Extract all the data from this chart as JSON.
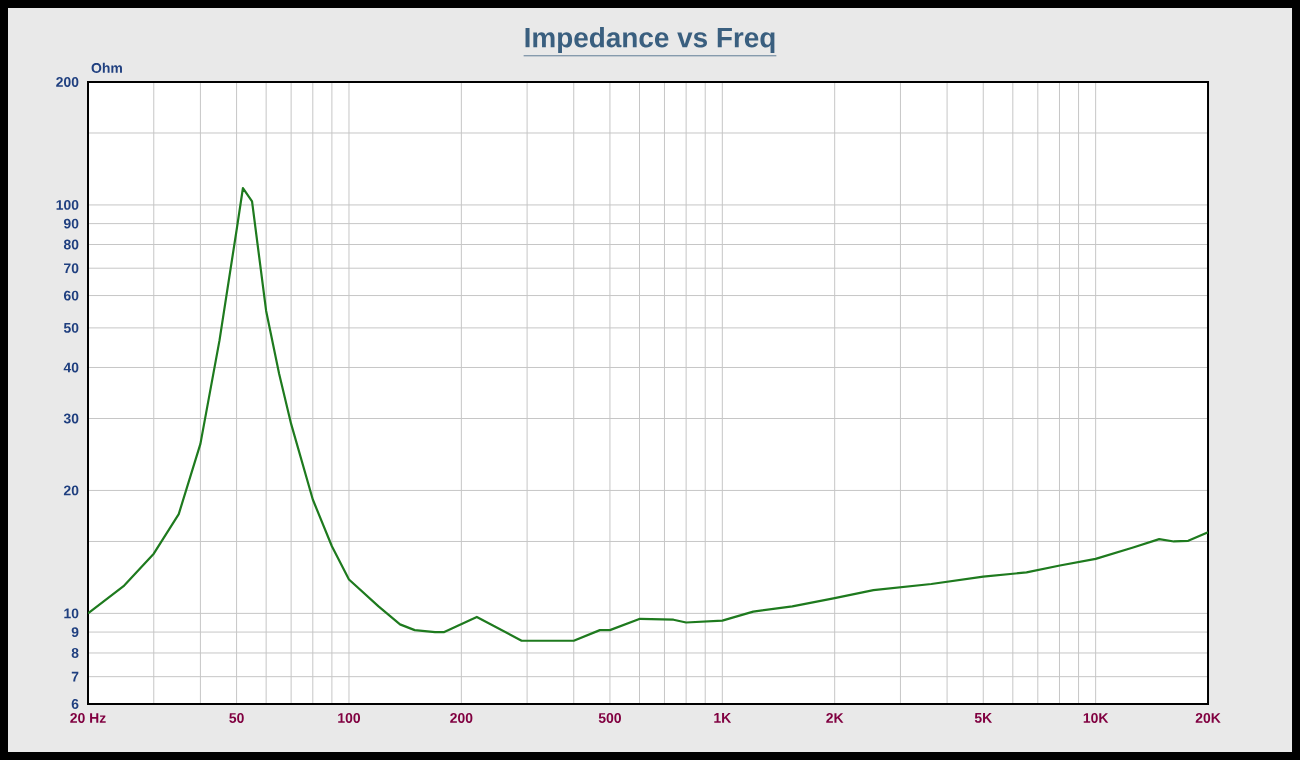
{
  "chart_data": {
    "type": "line",
    "title": "Impedance vs Freq",
    "ylabel": "Ohm",
    "x": [
      20,
      25,
      30,
      35,
      40,
      45,
      50,
      52,
      55,
      60,
      65,
      70,
      80,
      90,
      100,
      120,
      137,
      150,
      170,
      180,
      220,
      290,
      400,
      470,
      500,
      602,
      740,
      800,
      1000,
      1210,
      1540,
      2000,
      2540,
      3630,
      5000,
      6530,
      8020,
      10000,
      12600,
      14800,
      16200,
      17700,
      20000
    ],
    "series": [
      {
        "color": "#1e7a1e",
        "values": [
          10,
          11.7,
          14,
          17.5,
          26,
          46.6,
          86.8,
          110,
          102,
          55,
          38.6,
          29.1,
          19,
          14.6,
          12.1,
          10.4,
          9.4,
          9.1,
          9,
          9,
          9.8,
          8.57,
          8.57,
          9.1,
          9.1,
          9.7,
          9.65,
          9.5,
          9.6,
          10.1,
          10.4,
          10.9,
          11.4,
          11.8,
          12.3,
          12.6,
          13.1,
          13.6,
          14.5,
          15.2,
          15,
          15.05,
          15.8
        ]
      }
    ],
    "log": "xy",
    "xlim": [
      20,
      20000
    ],
    "ylim": [
      6,
      200
    ],
    "grid": true,
    "marker": "none",
    "line_style": "solid",
    "xticks": [
      {
        "value": 20,
        "label": "20  Hz"
      },
      {
        "value": 30,
        "label": null
      },
      {
        "value": 40,
        "label": null
      },
      50,
      {
        "value": 60,
        "label": null
      },
      {
        "value": 70,
        "label": null
      },
      {
        "value": 80,
        "label": null
      },
      {
        "value": 90,
        "label": null
      },
      100,
      200,
      {
        "value": 300,
        "label": null
      },
      {
        "value": 400,
        "label": null
      },
      500,
      {
        "value": 600,
        "label": null
      },
      {
        "value": 700,
        "label": null
      },
      {
        "value": 800,
        "label": null
      },
      {
        "value": 900,
        "label": null
      },
      {
        "value": 1000,
        "label": "1K"
      },
      {
        "value": 2000,
        "label": "2K"
      },
      {
        "value": 3000,
        "label": null
      },
      {
        "value": 4000,
        "label": null
      },
      {
        "value": 5000,
        "label": "5K"
      },
      {
        "value": 6000,
        "label": null
      },
      {
        "value": 7000,
        "label": null
      },
      {
        "value": 8000,
        "label": null
      },
      {
        "value": 9000,
        "label": null
      },
      {
        "value": 10000,
        "label": "10K"
      },
      {
        "value": 20000,
        "label": "20K"
      }
    ],
    "yticks": [
      6,
      7,
      8,
      9,
      10,
      {
        "value": 15,
        "label": null
      },
      20,
      30,
      40,
      50,
      60,
      70,
      80,
      90,
      100,
      {
        "value": 150,
        "label": null
      },
      200
    ]
  }
}
